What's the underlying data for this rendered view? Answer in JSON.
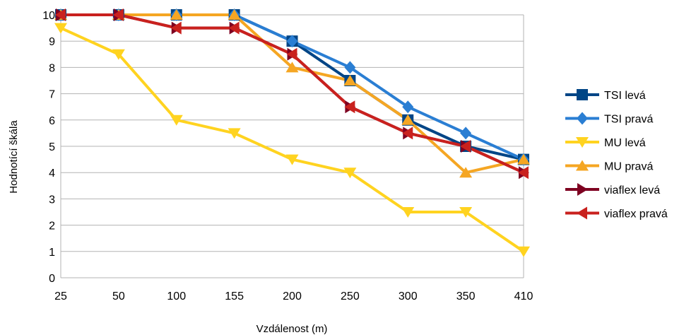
{
  "chart_data": {
    "type": "line",
    "categories": [
      "25",
      "50",
      "100",
      "155",
      "200",
      "250",
      "300",
      "350",
      "410"
    ],
    "xlabel": "Vzdálenost (m)",
    "ylabel": "Hodnotící škála",
    "ylim": [
      0,
      10
    ],
    "yticks": [
      "0",
      "1",
      "2",
      "3",
      "4",
      "5",
      "6",
      "7",
      "8",
      "9",
      "10"
    ],
    "grid": "horizontal",
    "legend_position": "right",
    "series": [
      {
        "name": "TSI levá",
        "color": "#004586",
        "marker": "square",
        "values": [
          10,
          10,
          10,
          10,
          9,
          7.5,
          6,
          5,
          4.5
        ]
      },
      {
        "name": "TSI pravá",
        "color": "#2a7ed3",
        "marker": "diamond",
        "values": [
          10,
          10,
          10,
          10,
          9,
          8,
          6.5,
          5.5,
          4.5
        ]
      },
      {
        "name": "MU levá",
        "color": "#ffd320",
        "marker": "triangle-down",
        "values": [
          9.5,
          8.5,
          6,
          5.5,
          4.5,
          4,
          2.5,
          2.5,
          1
        ]
      },
      {
        "name": "MU pravá",
        "color": "#f5a623",
        "marker": "triangle-up",
        "values": [
          10,
          10,
          10,
          10,
          8,
          7.5,
          6,
          4,
          4.5
        ]
      },
      {
        "name": "viaflex levá",
        "color": "#7e0021",
        "marker": "triangle-right",
        "values": [
          10,
          10,
          9.5,
          9.5,
          8.5,
          6.5,
          5.5,
          5,
          4
        ]
      },
      {
        "name": "viaflex pravá",
        "color": "#c9211e",
        "marker": "triangle-left",
        "values": [
          10,
          10,
          9.5,
          9.5,
          8.5,
          6.5,
          5.5,
          5,
          4
        ]
      }
    ]
  }
}
